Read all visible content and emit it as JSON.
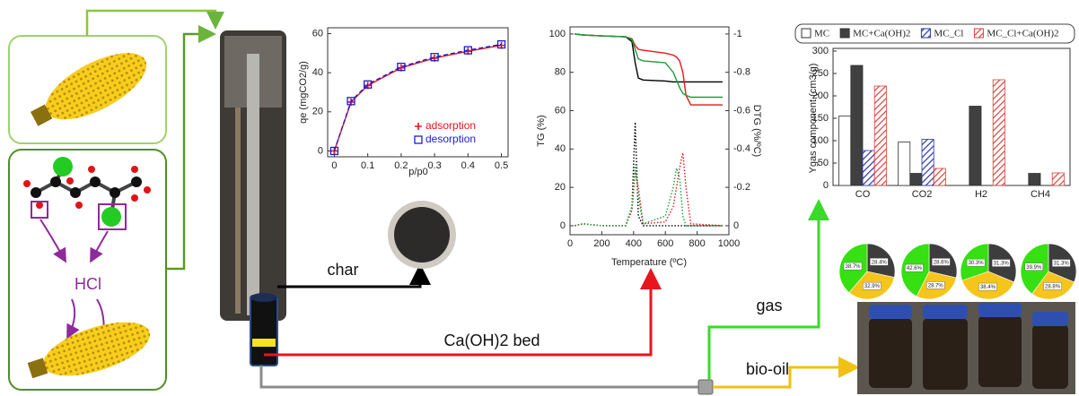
{
  "labels": {
    "hcl": "HCl",
    "char": "char",
    "bed": "Ca(OH)2 bed",
    "gas": "gas",
    "bio_oil": "bio-oil"
  },
  "chart_data": [
    {
      "type": "scatter",
      "xlabel": "p/p0",
      "ylabel": "qe (mgCO2/g)",
      "x": [
        0,
        0.05,
        0.1,
        0.2,
        0.3,
        0.4,
        0.5
      ],
      "xlim": [
        -0.02,
        0.52
      ],
      "xticks": [
        0,
        0.1,
        0.2,
        0.3,
        0.4,
        0.5
      ],
      "ylim": [
        -3,
        63
      ],
      "yticks": [
        0,
        20,
        40,
        60
      ],
      "series": [
        {
          "name": "adsorption",
          "color": "#e8141e",
          "marker": "+",
          "linestyle": "solid",
          "values": [
            0,
            25,
            33.5,
            42.5,
            47.5,
            51,
            54
          ]
        },
        {
          "name": "desorption",
          "color": "#1c1ccf",
          "marker": "square",
          "linestyle": "dashed",
          "values": [
            0,
            25.5,
            34,
            43,
            48,
            51.5,
            54.5
          ]
        }
      ]
    },
    {
      "type": "line",
      "xlabel": "Temperature (ºC)",
      "ylabel": "TG (%)",
      "y2label": "DTG (%/ºC)",
      "x": [
        30,
        80,
        200,
        350,
        390,
        410,
        430,
        460,
        600,
        650,
        670,
        690,
        710,
        730,
        760,
        960
      ],
      "xlim": [
        0,
        1000
      ],
      "xticks": [
        0,
        200,
        400,
        600,
        800,
        1000
      ],
      "ylim": [
        -4.7,
        103.7
      ],
      "yticks": [
        0,
        20,
        40,
        60,
        80,
        100
      ],
      "y2lim": [
        0.047,
        -1.037
      ],
      "y2ticks": [
        -1,
        -0.8,
        -0.6,
        -0.4,
        -0.2,
        0
      ],
      "series": [
        {
          "color": "#000000",
          "axis": "y",
          "linestyle": "solid",
          "values": [
            100,
            99.5,
            99,
            98.5,
            96,
            85,
            77,
            76,
            75.5,
            75,
            75,
            75,
            75,
            75,
            75,
            75
          ]
        },
        {
          "color": "#e8141e",
          "axis": "y",
          "linestyle": "solid",
          "values": [
            100,
            99.5,
            99,
            98.5,
            97.5,
            94,
            92,
            91.5,
            90,
            89,
            88,
            86,
            80,
            68,
            63,
            63
          ]
        },
        {
          "color": "#1a9e3a",
          "axis": "y",
          "linestyle": "solid",
          "values": [
            100,
            99.5,
            99,
            98.5,
            97,
            92,
            87,
            86,
            85,
            80,
            76,
            72,
            69,
            68,
            67,
            67
          ]
        },
        {
          "color": "#000000",
          "axis": "y2",
          "linestyle": "dotted",
          "values": [
            0,
            -0.01,
            0,
            0,
            -0.1,
            -0.54,
            -0.05,
            0,
            0,
            0,
            0,
            0,
            0,
            0,
            0,
            0
          ]
        },
        {
          "color": "#e8141e",
          "axis": "y2",
          "linestyle": "dotted",
          "values": [
            0,
            -0.01,
            0,
            0,
            -0.08,
            -0.28,
            -0.2,
            -0.01,
            -0.02,
            -0.1,
            -0.2,
            -0.3,
            -0.38,
            -0.2,
            -0.01,
            0
          ]
        },
        {
          "color": "#1a9e3a",
          "axis": "y2",
          "linestyle": "dotted",
          "values": [
            0,
            -0.01,
            0,
            0,
            -0.1,
            -0.32,
            -0.15,
            -0.01,
            -0.05,
            -0.2,
            -0.3,
            -0.25,
            -0.05,
            0,
            0,
            0
          ]
        }
      ]
    },
    {
      "type": "bar",
      "ylabel": "Ygas component (cm3/g)",
      "categories": [
        "CO",
        "CO2",
        "H2",
        "CH4"
      ],
      "ylim": [
        0,
        300
      ],
      "yticks": [
        0,
        50,
        100,
        150,
        200,
        250,
        300
      ],
      "series": [
        {
          "name": "MC",
          "color": "#ffffff",
          "hatch": false,
          "values": [
            155,
            97,
            0,
            0
          ]
        },
        {
          "name": "MC+Ca(OH)2",
          "color": "#404040",
          "hatch": false,
          "values": [
            268,
            27,
            177,
            27
          ]
        },
        {
          "name": "MC_Cl",
          "color": "#2b35b0",
          "hatch": true,
          "values": [
            78,
            103,
            0,
            0
          ]
        },
        {
          "name": "MC_Cl+Ca(OH)2",
          "color": "#d9413a",
          "hatch": true,
          "values": [
            222,
            38,
            236,
            28
          ]
        }
      ]
    },
    {
      "type": "pie",
      "colors": [
        "#3d3d3d",
        "#f5c51c",
        "#36e012"
      ],
      "values": [
        28.4,
        32.9,
        38.7
      ],
      "value_labels": [
        "28.4%",
        "32.9%",
        "38.7%"
      ]
    },
    {
      "type": "pie",
      "colors": [
        "#3d3d3d",
        "#f5c51c",
        "#36e012"
      ],
      "values": [
        28.6,
        28.7,
        42.6
      ],
      "value_labels": [
        "28.6%",
        "28.7%",
        "42.6%"
      ]
    },
    {
      "type": "pie",
      "colors": [
        "#3d3d3d",
        "#f5c51c",
        "#36e012"
      ],
      "values": [
        31.3,
        38.4,
        30.3
      ],
      "value_labels": [
        "31.3%",
        "38.4%",
        "30.3%"
      ]
    },
    {
      "type": "pie",
      "colors": [
        "#3d3d3d",
        "#f5c51c",
        "#36e012"
      ],
      "values": [
        31.3,
        28.8,
        39.9
      ],
      "value_labels": [
        "31.3%",
        "28.8%",
        "39.9%"
      ]
    }
  ]
}
